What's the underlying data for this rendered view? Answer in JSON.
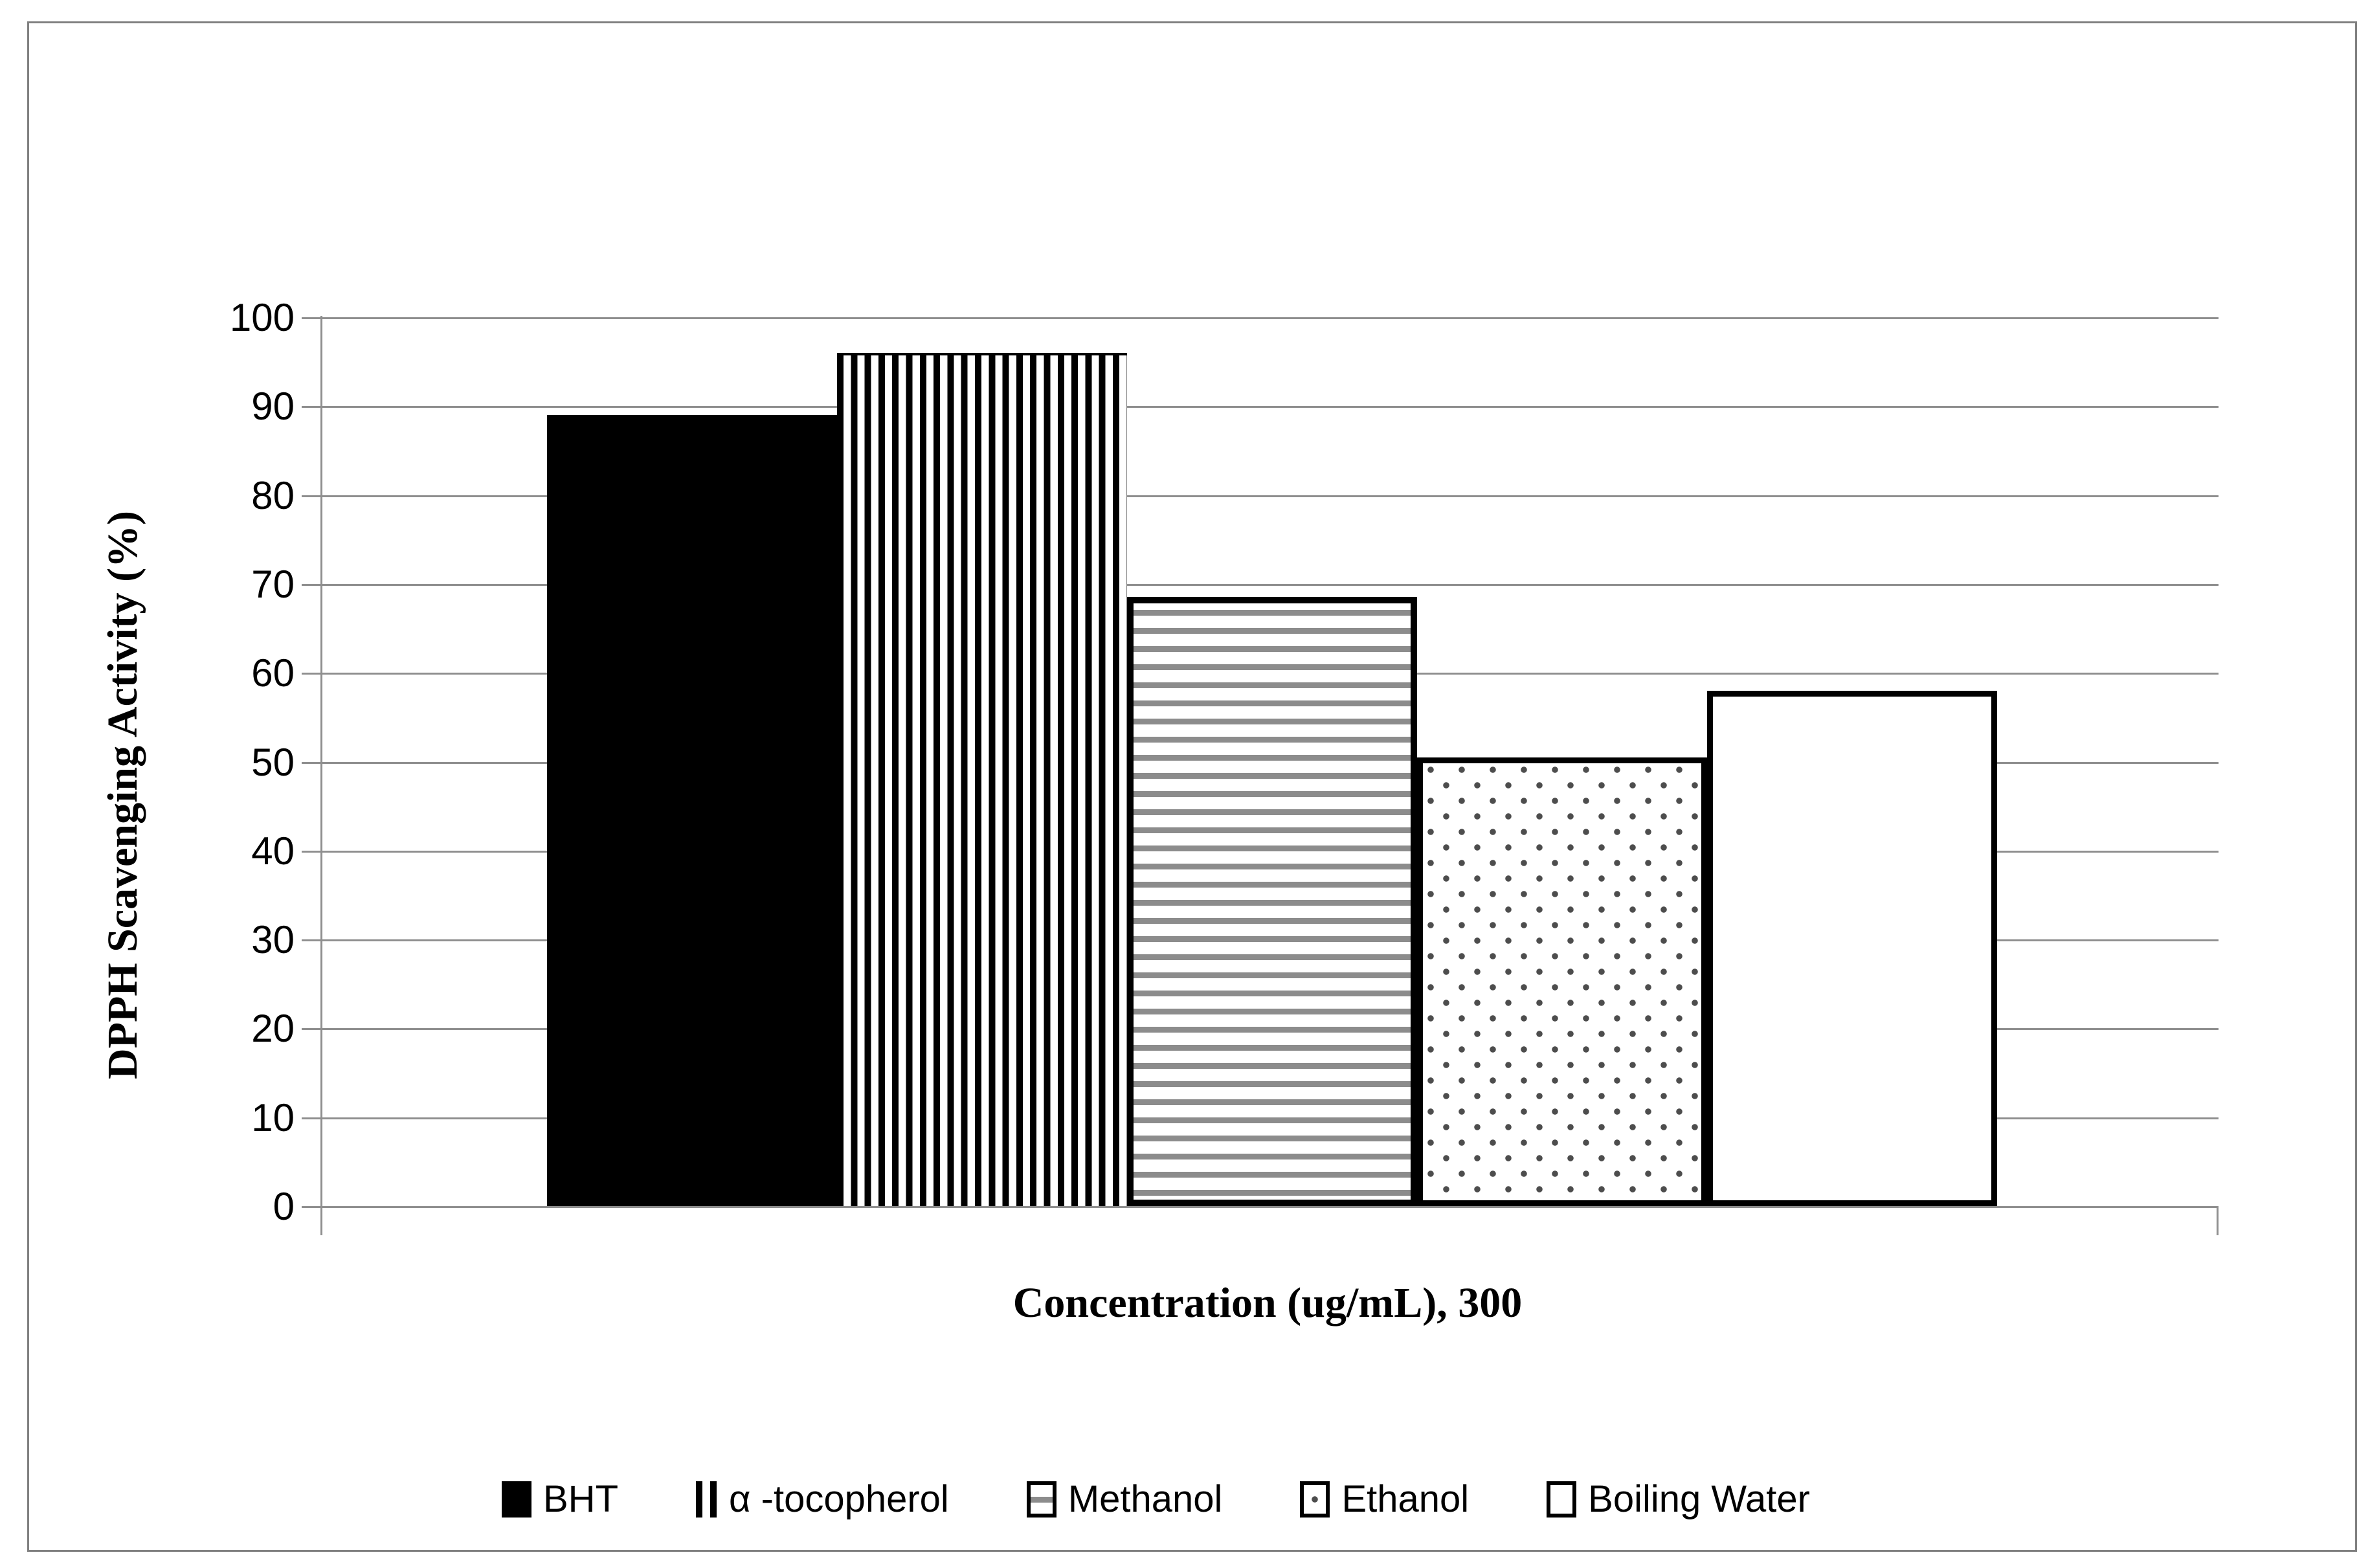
{
  "figure": {
    "y_axis_title": "DPPH Scavenging Activity (%)",
    "x_axis_label": "Concentration (ug/mL), 300",
    "y_tick_labels": [
      "0",
      "10",
      "20",
      "30",
      "40",
      "50",
      "60",
      "70",
      "80",
      "90",
      "100"
    ]
  },
  "chart_data": {
    "type": "bar",
    "title": "",
    "xlabel": "Concentration (ug/mL), 300",
    "ylabel": "DPPH Scavenging Activity (%)",
    "categories": [
      "300"
    ],
    "series": [
      {
        "name": "BHT",
        "pattern": "solid",
        "values": [
          89
        ]
      },
      {
        "name": "α -tocopherol",
        "pattern": "vstripes",
        "values": [
          96
        ]
      },
      {
        "name": "Methanol",
        "pattern": "hstripes",
        "values": [
          68.5
        ]
      },
      {
        "name": "Ethanol",
        "pattern": "dots",
        "values": [
          50.5
        ]
      },
      {
        "name": "Boiling Water",
        "pattern": "plain",
        "values": [
          58
        ]
      }
    ],
    "ylim": [
      0,
      100
    ],
    "ytick_step": 10,
    "grid": true,
    "legend_position": "bottom"
  },
  "colors": {
    "gridline": "#8f8f8f",
    "figure_border": "#808080",
    "pattern_black": "#000000",
    "stripe_gray": "#8c8c8c",
    "dot_gray": "#4d4d4d",
    "background": "#ffffff"
  }
}
